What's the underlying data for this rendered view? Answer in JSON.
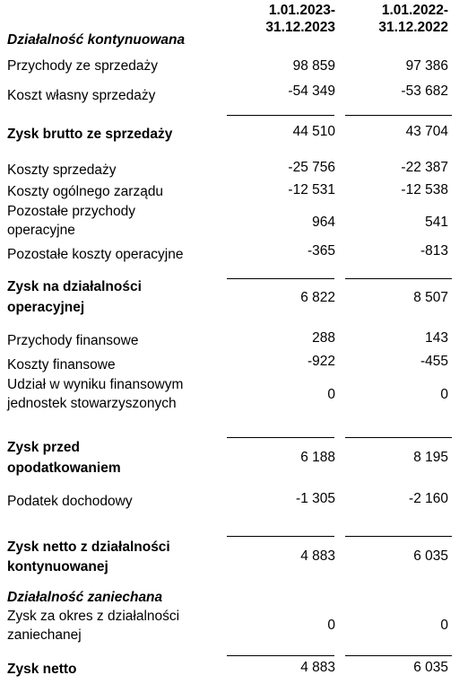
{
  "header": {
    "col1": [
      "1.01.2023-",
      "31.12.2023"
    ],
    "col2": [
      "1.01.2022-",
      "31.12.2022"
    ]
  },
  "rows": [
    {
      "label": [
        "Działalność kontynuowana"
      ],
      "style": "ital"
    },
    {
      "label": [
        "Przychody ze sprzedaży"
      ],
      "v1": "98 859",
      "v2": "97 386"
    },
    {
      "label": [
        "Koszt własny sprzedaży"
      ],
      "v1": "-54 349",
      "v2": "-53 682"
    },
    {
      "label": [
        "Zysk  brutto ze sprzedaży"
      ],
      "style": "bold",
      "v1": "44 510",
      "v2": "43 704"
    },
    {
      "label": [
        "Koszty sprzedaży"
      ],
      "v1": "-25 756",
      "v2": "-22 387"
    },
    {
      "label": [
        "Koszty ogólnego zarządu"
      ],
      "v1": "-12 531",
      "v2": "-12 538"
    },
    {
      "label": [
        "Pozostałe przychody",
        "operacyjne"
      ],
      "v1": "964",
      "v2": "541"
    },
    {
      "label": [
        "Pozostałe koszty operacyjne"
      ],
      "v1": "-365",
      "v2": "-813"
    },
    {
      "label": [
        "Zysk na działalności",
        "operacyjnej"
      ],
      "style": "bold",
      "v1": "6 822",
      "v2": "8 507"
    },
    {
      "label": [
        "Przychody finansowe"
      ],
      "v1": "288",
      "v2": "143"
    },
    {
      "label": [
        "Koszty finansowe"
      ],
      "v1": "-922",
      "v2": "-455"
    },
    {
      "label": [
        "Udział w wyniku finansowym",
        "jednostek stowarzyszonych"
      ],
      "v1": "0",
      "v2": "0"
    },
    {
      "label": [
        "Zysk przed",
        "opodatkowaniem"
      ],
      "style": "bold",
      "v1": "6 188",
      "v2": "8 195"
    },
    {
      "label": [
        "Podatek dochodowy"
      ],
      "v1": "-1 305",
      "v2": "-2 160"
    },
    {
      "label": [
        "Zysk netto z działalności",
        "kontynuowanej"
      ],
      "style": "bold",
      "v1": "4 883",
      "v2": "6 035"
    },
    {
      "label": [
        "Działalność zaniechana"
      ],
      "style": "ital"
    },
    {
      "label": [
        "Zysk za okres z działalności",
        "zaniechanej"
      ],
      "v1": "0",
      "v2": "0"
    },
    {
      "label": [
        "Zysk netto"
      ],
      "style": "bold",
      "v1": "4 883",
      "v2": "6 035"
    }
  ]
}
